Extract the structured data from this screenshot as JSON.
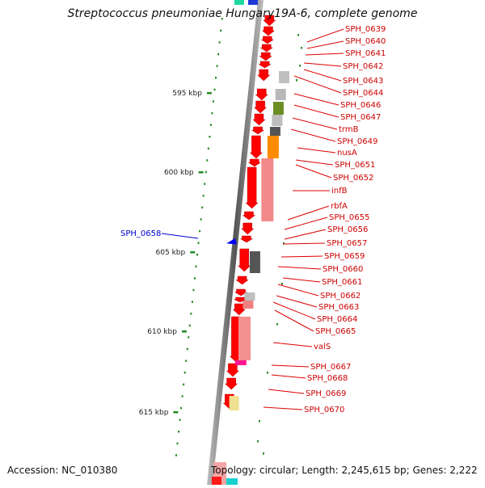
{
  "title": "Streptococcus pneumoniae Hungary19A-6, complete genome",
  "accession": "Accession: NC_010380",
  "topology": "Topology: circular; Length: 2,245,615 bp; Genes: 2,222",
  "ticks": [
    "595 kbp",
    "600 kbp",
    "605 kbp",
    "610 kbp",
    "615 kbp"
  ],
  "left_gene": "SPH_0658",
  "right_genes": [
    "SPH_0639",
    "SPH_0640",
    "SPH_0641",
    "SPH_0642",
    "SPH_0643",
    "SPH_0644",
    "SPH_0646",
    "SPH_0647",
    "trmB",
    "SPH_0649",
    "nusA",
    "SPH_0651",
    "SPH_0652",
    "infB",
    "rbfA",
    "SPH_0655",
    "SPH_0656",
    "SPH_0657",
    "SPH_0659",
    "SPH_0660",
    "SPH_0661",
    "SPH_0662",
    "SPH_0663",
    "SPH_0664",
    "SPH_0665",
    "valS",
    "SPH_0667",
    "SPH_0668",
    "SPH_0669",
    "SPH_0670"
  ],
  "colors": {
    "gene": "#ff0000",
    "label_line": "#dd0000",
    "left_label": "#0000cc",
    "tick": "#228b22"
  }
}
